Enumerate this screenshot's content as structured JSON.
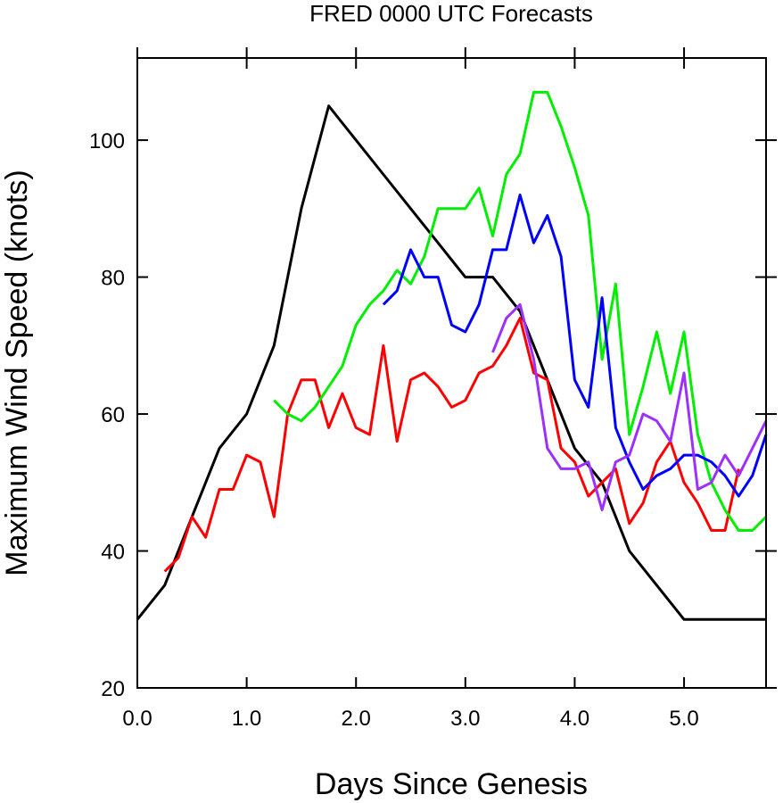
{
  "chart_data": {
    "type": "line",
    "title": "FRED 0000 UTC Forecasts",
    "xlabel": "Days Since Genesis",
    "ylabel": "Maximum Wind Speed (knots)",
    "xlim": [
      0,
      5.75
    ],
    "ylim": [
      20,
      112
    ],
    "x_ticks": [
      0,
      1,
      2,
      3,
      4,
      5
    ],
    "x_tick_labels": [
      "0.0",
      "1.0",
      "2.0",
      "3.0",
      "4.0",
      "5.0"
    ],
    "y_ticks": [
      20,
      40,
      60,
      80,
      100
    ],
    "y_tick_labels": [
      "20",
      "40",
      "60",
      "80",
      "100"
    ],
    "grid": false,
    "series": [
      {
        "color": "#000000",
        "points": [
          [
            0,
            30
          ],
          [
            0.25,
            35
          ],
          [
            0.5,
            45
          ],
          [
            0.75,
            55
          ],
          [
            1.0,
            60
          ],
          [
            1.25,
            70
          ],
          [
            1.5,
            90
          ],
          [
            1.75,
            105
          ],
          [
            2.0,
            100
          ],
          [
            2.25,
            95
          ],
          [
            2.5,
            90
          ],
          [
            2.75,
            85
          ],
          [
            3.0,
            80
          ],
          [
            3.25,
            80
          ],
          [
            3.5,
            75
          ],
          [
            3.75,
            65
          ],
          [
            4.0,
            55
          ],
          [
            4.25,
            50
          ],
          [
            4.5,
            40
          ],
          [
            4.75,
            35
          ],
          [
            5.0,
            30
          ],
          [
            5.25,
            30
          ],
          [
            5.5,
            30
          ],
          [
            5.75,
            30
          ]
        ]
      },
      {
        "color": "#ff0000",
        "points": [
          [
            0.25,
            37
          ],
          [
            0.375,
            39
          ],
          [
            0.5,
            45
          ],
          [
            0.625,
            42
          ],
          [
            0.75,
            49
          ],
          [
            0.875,
            49
          ],
          [
            1.0,
            54
          ],
          [
            1.125,
            53
          ],
          [
            1.25,
            45
          ],
          [
            1.375,
            60
          ],
          [
            1.5,
            65
          ],
          [
            1.625,
            65
          ],
          [
            1.75,
            58
          ],
          [
            1.875,
            63
          ],
          [
            2.0,
            58
          ],
          [
            2.125,
            57
          ],
          [
            2.25,
            70
          ],
          [
            2.375,
            56
          ],
          [
            2.5,
            65
          ],
          [
            2.625,
            66
          ],
          [
            2.75,
            64
          ],
          [
            2.875,
            61
          ],
          [
            3.0,
            62
          ],
          [
            3.125,
            66
          ],
          [
            3.25,
            67
          ],
          [
            3.375,
            70
          ],
          [
            3.5,
            74
          ],
          [
            3.625,
            66
          ],
          [
            3.75,
            65
          ],
          [
            3.875,
            55
          ],
          [
            4.0,
            53
          ],
          [
            4.125,
            48
          ],
          [
            4.25,
            50
          ],
          [
            4.375,
            52
          ],
          [
            4.5,
            44
          ],
          [
            4.625,
            47
          ],
          [
            4.75,
            53
          ],
          [
            4.875,
            56
          ],
          [
            5.0,
            50
          ],
          [
            5.125,
            47
          ],
          [
            5.25,
            43
          ],
          [
            5.375,
            43
          ],
          [
            5.5,
            52
          ]
        ]
      },
      {
        "color": "#00ee00",
        "points": [
          [
            1.25,
            62
          ],
          [
            1.375,
            60
          ],
          [
            1.5,
            59
          ],
          [
            1.625,
            61
          ],
          [
            1.75,
            64
          ],
          [
            1.875,
            67
          ],
          [
            2.0,
            73
          ],
          [
            2.125,
            76
          ],
          [
            2.25,
            78
          ],
          [
            2.375,
            81
          ],
          [
            2.5,
            79
          ],
          [
            2.625,
            83
          ],
          [
            2.75,
            90
          ],
          [
            2.875,
            90
          ],
          [
            3.0,
            90
          ],
          [
            3.125,
            93
          ],
          [
            3.25,
            86
          ],
          [
            3.375,
            95
          ],
          [
            3.5,
            98
          ],
          [
            3.625,
            107
          ],
          [
            3.75,
            107
          ],
          [
            3.875,
            102
          ],
          [
            4.0,
            96
          ],
          [
            4.125,
            89
          ],
          [
            4.25,
            68
          ],
          [
            4.375,
            79
          ],
          [
            4.5,
            57
          ],
          [
            4.625,
            64
          ],
          [
            4.75,
            72
          ],
          [
            4.875,
            63
          ],
          [
            5.0,
            72
          ],
          [
            5.125,
            57
          ],
          [
            5.25,
            50
          ],
          [
            5.375,
            46
          ],
          [
            5.5,
            43
          ],
          [
            5.625,
            43
          ],
          [
            5.75,
            45
          ]
        ]
      },
      {
        "color": "#0000ff",
        "points": [
          [
            2.25,
            76
          ],
          [
            2.375,
            78
          ],
          [
            2.5,
            84
          ],
          [
            2.625,
            80
          ],
          [
            2.75,
            80
          ],
          [
            2.875,
            73
          ],
          [
            3.0,
            72
          ],
          [
            3.125,
            76
          ],
          [
            3.25,
            84
          ],
          [
            3.375,
            84
          ],
          [
            3.5,
            92
          ],
          [
            3.625,
            85
          ],
          [
            3.75,
            89
          ],
          [
            3.875,
            83
          ],
          [
            4.0,
            65
          ],
          [
            4.125,
            61
          ],
          [
            4.25,
            77
          ],
          [
            4.375,
            58
          ],
          [
            4.5,
            53
          ],
          [
            4.625,
            49
          ],
          [
            4.75,
            51
          ],
          [
            4.875,
            52
          ],
          [
            5.0,
            54
          ],
          [
            5.125,
            54
          ],
          [
            5.25,
            53
          ],
          [
            5.375,
            51
          ],
          [
            5.5,
            48
          ],
          [
            5.625,
            51
          ],
          [
            5.75,
            57
          ]
        ]
      },
      {
        "color": "#9b30ff",
        "points": [
          [
            3.25,
            69
          ],
          [
            3.375,
            74
          ],
          [
            3.5,
            76
          ],
          [
            3.625,
            68
          ],
          [
            3.75,
            55
          ],
          [
            3.875,
            52
          ],
          [
            4.0,
            52
          ],
          [
            4.125,
            53
          ],
          [
            4.25,
            46
          ],
          [
            4.375,
            53
          ],
          [
            4.5,
            54
          ],
          [
            4.625,
            60
          ],
          [
            4.75,
            59
          ],
          [
            4.875,
            56
          ],
          [
            5.0,
            66
          ],
          [
            5.125,
            49
          ],
          [
            5.25,
            50
          ],
          [
            5.375,
            54
          ],
          [
            5.5,
            51
          ],
          [
            5.625,
            55
          ],
          [
            5.75,
            59
          ]
        ]
      }
    ]
  }
}
